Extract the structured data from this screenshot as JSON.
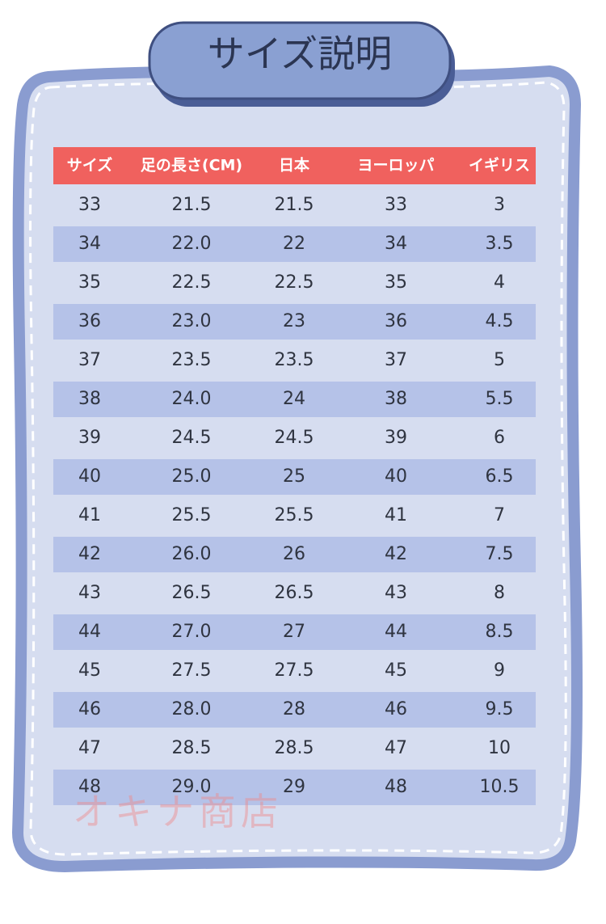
{
  "title": "サイズ説明",
  "table": {
    "headers": [
      "サイズ",
      "足の長さ(CM)",
      "日本",
      "ヨーロッパ",
      "イギリス"
    ],
    "rows": [
      [
        "33",
        "21.5",
        "21.5",
        "33",
        "3"
      ],
      [
        "34",
        "22.0",
        "22",
        "34",
        "3.5"
      ],
      [
        "35",
        "22.5",
        "22.5",
        "35",
        "4"
      ],
      [
        "36",
        "23.0",
        "23",
        "36",
        "4.5"
      ],
      [
        "37",
        "23.5",
        "23.5",
        "37",
        "5"
      ],
      [
        "38",
        "24.0",
        "24",
        "38",
        "5.5"
      ],
      [
        "39",
        "24.5",
        "24.5",
        "39",
        "6"
      ],
      [
        "40",
        "25.0",
        "25",
        "40",
        "6.5"
      ],
      [
        "41",
        "25.5",
        "25.5",
        "41",
        "7"
      ],
      [
        "42",
        "26.0",
        "26",
        "42",
        "7.5"
      ],
      [
        "43",
        "26.5",
        "26.5",
        "43",
        "8"
      ],
      [
        "44",
        "27.0",
        "27",
        "44",
        "8.5"
      ],
      [
        "45",
        "27.5",
        "27.5",
        "45",
        "9"
      ],
      [
        "46",
        "28.0",
        "28",
        "46",
        "9.5"
      ],
      [
        "47",
        "28.5",
        "28.5",
        "47",
        "10"
      ],
      [
        "48",
        "29.0",
        "29",
        "48",
        "10.5"
      ]
    ]
  },
  "watermark": "オキナ商店"
}
